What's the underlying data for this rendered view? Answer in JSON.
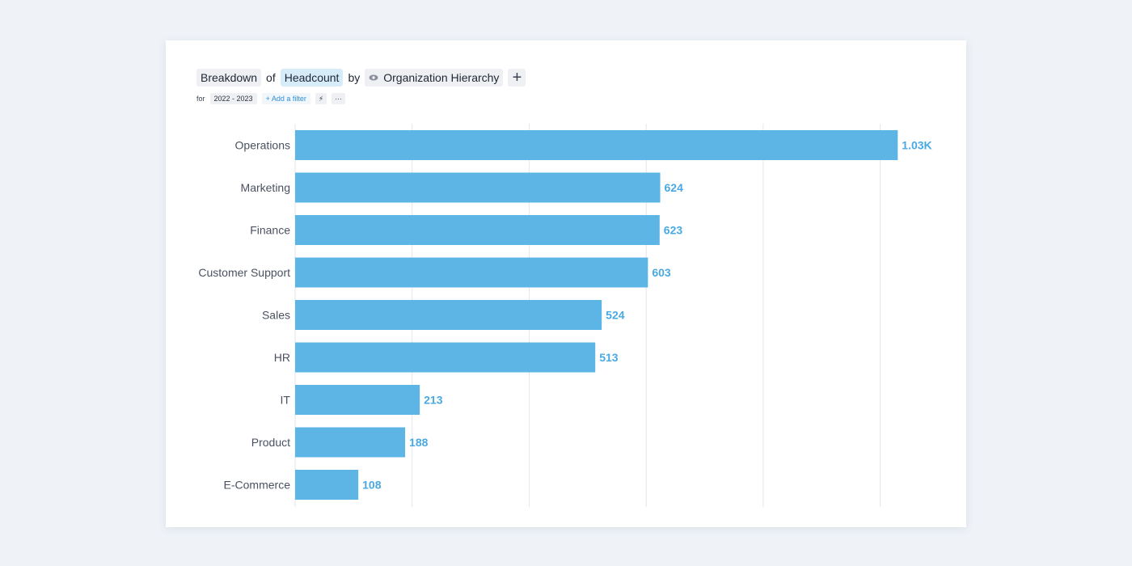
{
  "query": {
    "breakdown_label": "Breakdown",
    "of_word": "of",
    "metric_label": "Headcount",
    "by_word": "by",
    "dimension_label": "Organization Hierarchy",
    "add_symbol": "+"
  },
  "filters": {
    "for_word": "for",
    "period": "2022 - 2023",
    "add_filter_label": "+ Add a filter",
    "lightning_symbol": "⚡",
    "more_symbol": "···"
  },
  "colors": {
    "bar": "#5db5e5",
    "grid": "#e3e6ea",
    "value": "#4aa9e2"
  },
  "chart_data": {
    "type": "bar",
    "orientation": "horizontal",
    "categories": [
      "Operations",
      "Marketing",
      "Finance",
      "Customer Support",
      "Sales",
      "HR",
      "IT",
      "Product",
      "E-Commerce"
    ],
    "values": [
      1030,
      624,
      623,
      603,
      524,
      513,
      213,
      188,
      108
    ],
    "value_labels": [
      "1.03K",
      "624",
      "623",
      "603",
      "524",
      "513",
      "213",
      "188",
      "108"
    ],
    "xlim": [
      0,
      1000
    ],
    "grid": true
  }
}
